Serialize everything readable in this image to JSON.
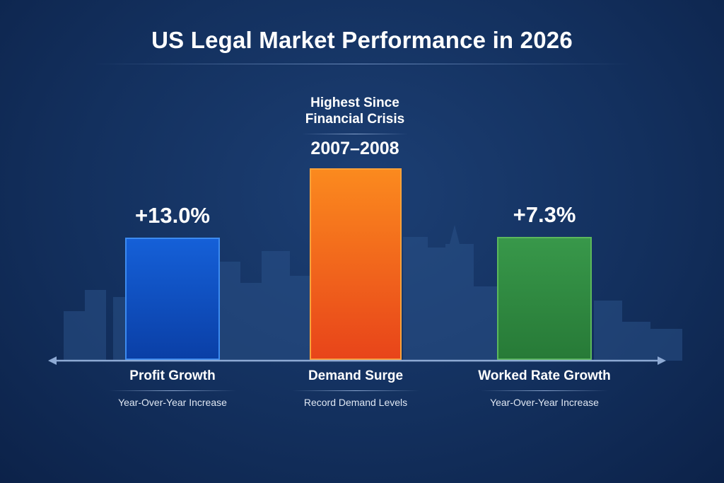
{
  "chart_data": {
    "type": "bar",
    "title": "US Legal Market Performance in 2026",
    "categories": [
      "Profit Growth",
      "Demand Surge",
      "Worked Rate Growth"
    ],
    "subtitles": [
      "Year-Over-Year Increase",
      "Record Demand Levels",
      "Year-Over-Year Increase"
    ],
    "data_labels": [
      "+13.0%",
      "",
      "+7.3%"
    ],
    "values": [
      13.0,
      null,
      7.3
    ],
    "annotation": {
      "line1": "Highest Since",
      "line2": "Financial Crisis",
      "period": "2007–2008"
    },
    "colors": [
      "#0a4fc0",
      "#f26a1b",
      "#2f8c3e"
    ],
    "background": "#13305e",
    "grid": false,
    "legend": "none"
  }
}
